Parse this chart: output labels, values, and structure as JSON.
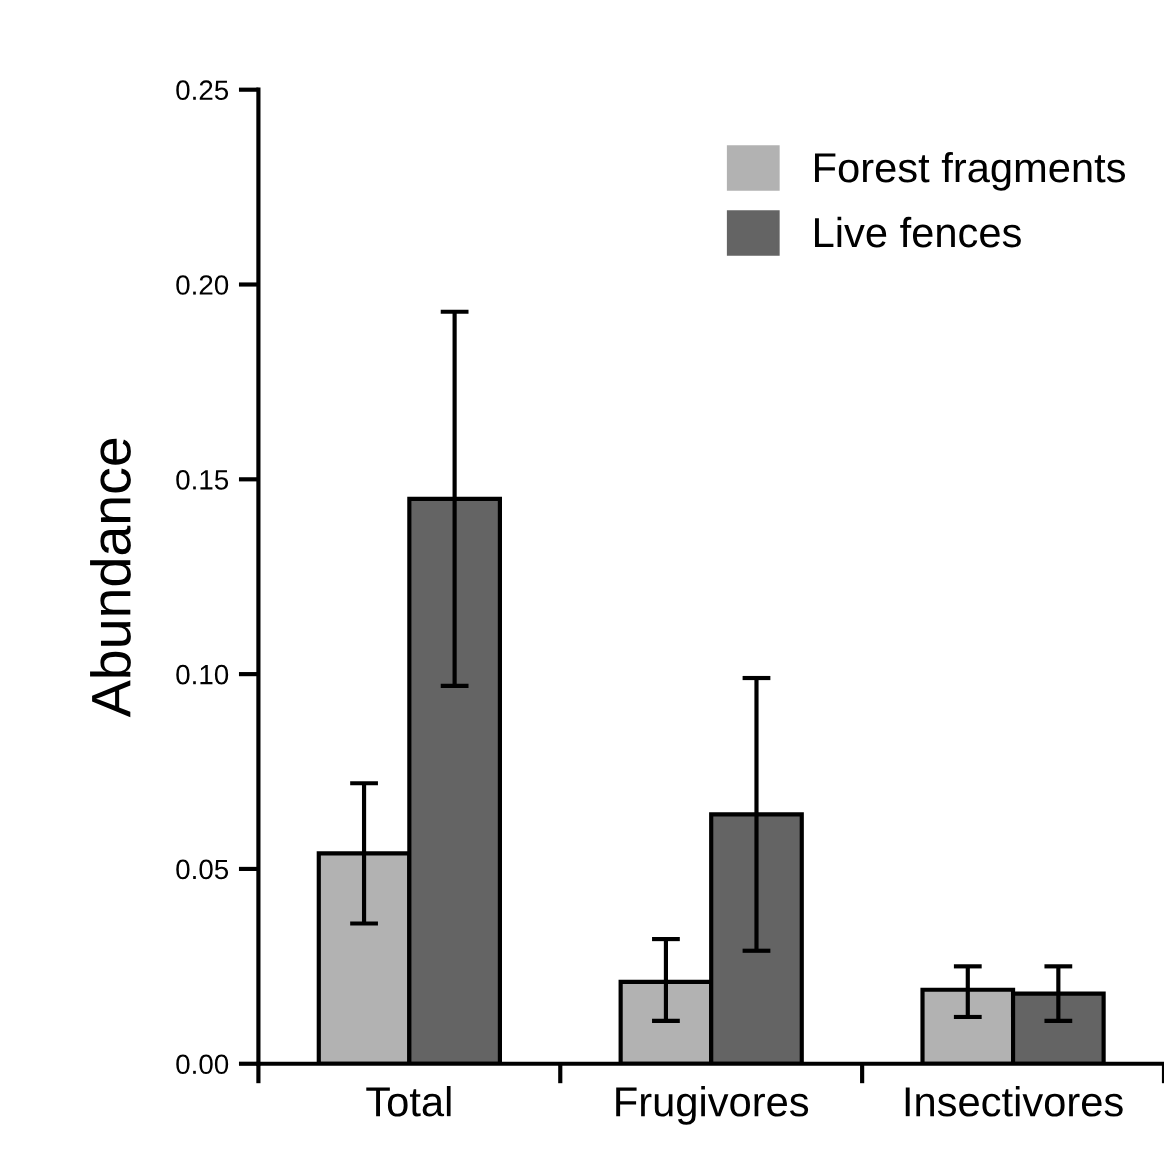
{
  "chart_data": {
    "type": "bar",
    "ylabel": "Abundance",
    "categories": [
      "Total",
      "Frugivores",
      "Insectivores"
    ],
    "series": [
      {
        "name": "Forest fragments",
        "color": "#b2b2b2",
        "values": [
          0.054,
          0.021,
          0.019
        ],
        "errors": [
          [
            0.036,
            0.072
          ],
          [
            0.011,
            0.032
          ],
          [
            0.012,
            0.025
          ]
        ]
      },
      {
        "name": "Live fences",
        "color": "#646464",
        "values": [
          0.145,
          0.064,
          0.018
        ],
        "errors": [
          [
            0.097,
            0.193
          ],
          [
            0.029,
            0.099
          ],
          [
            0.011,
            0.025
          ]
        ]
      }
    ],
    "ylim": [
      0,
      0.25
    ],
    "yticks": [
      {
        "value": 0,
        "label": "0.00"
      },
      {
        "value": 0.05,
        "label": "0.05"
      },
      {
        "value": 0.1,
        "label": "0.10"
      },
      {
        "value": 0.15,
        "label": "0.15"
      },
      {
        "value": 0.2,
        "label": "0.20"
      },
      {
        "value": 0.25,
        "label": "0.25"
      }
    ],
    "legend": "top right",
    "grid": false
  }
}
